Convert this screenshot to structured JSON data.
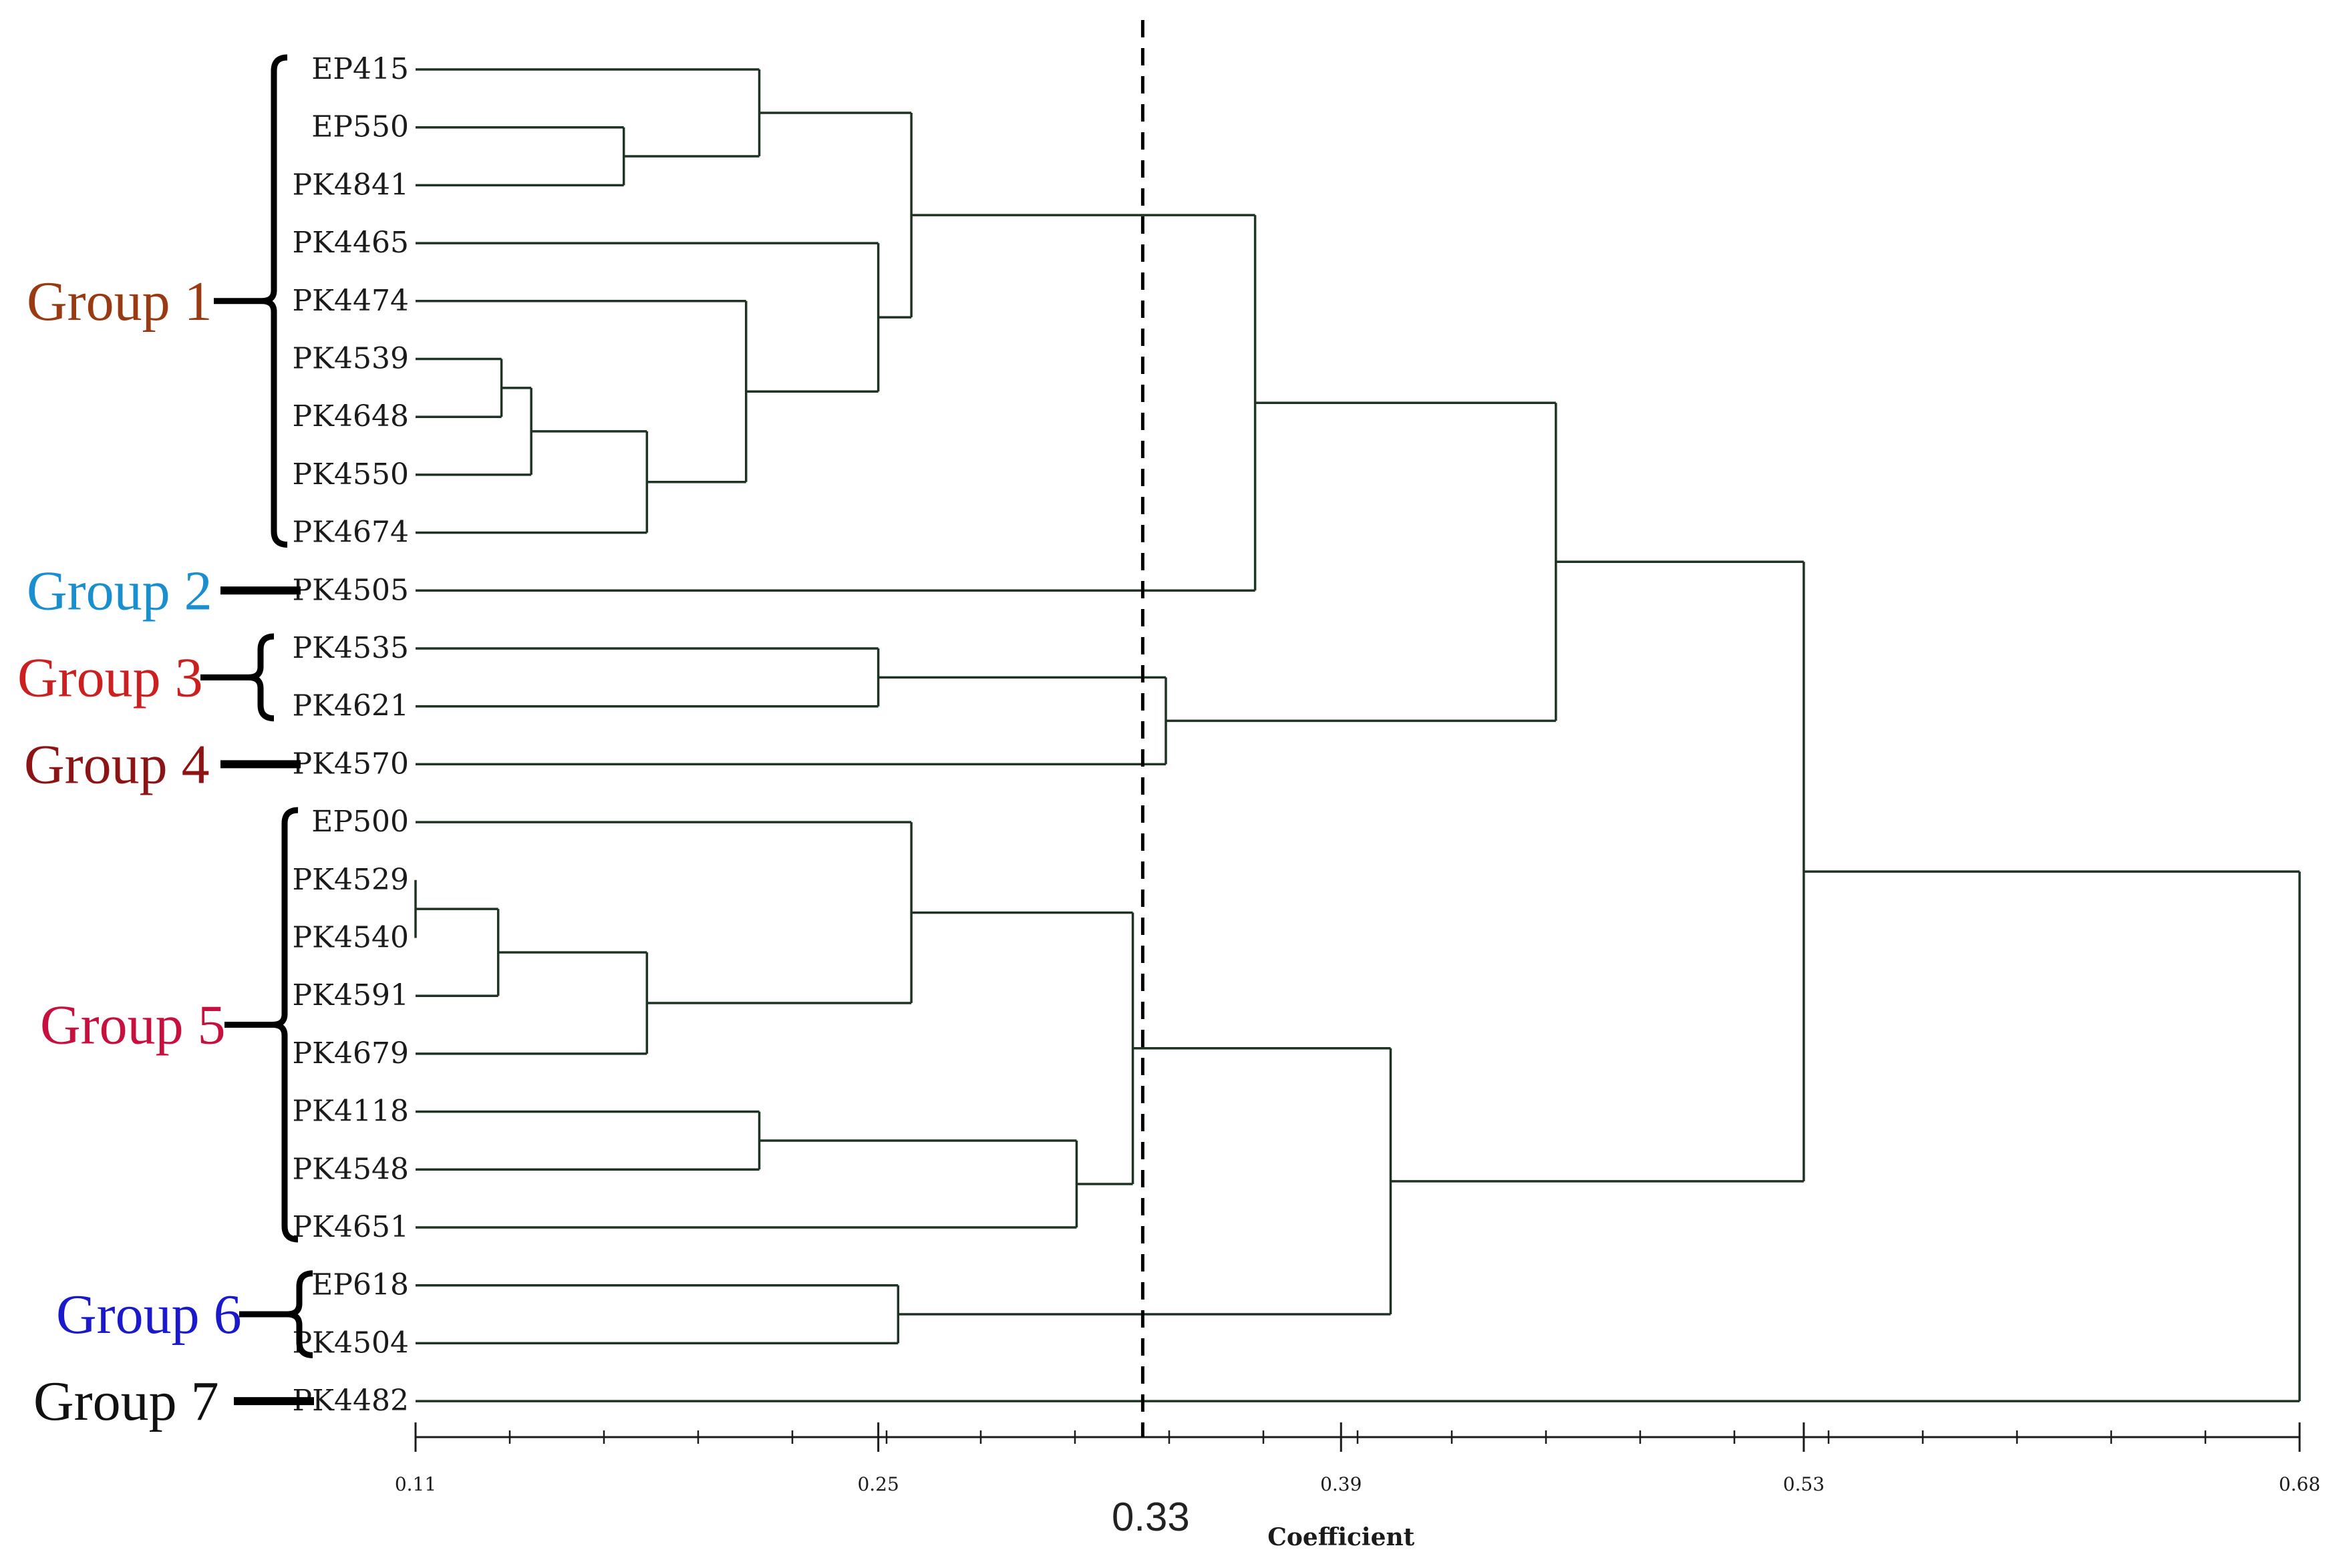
{
  "chart_data": {
    "type": "dendrogram",
    "axis": {
      "xlabel": "Coefficient",
      "min": 0.11,
      "max": 0.68,
      "tick_labels": [
        "0.11",
        "0.25",
        "0.39",
        "0.53",
        "0.68"
      ],
      "tick_values": [
        0.11,
        0.25,
        0.39,
        0.53,
        0.68
      ]
    },
    "cutoff": {
      "value": 0.33,
      "label": "0.33"
    },
    "leaves": [
      "EP415",
      "EP550",
      "PK4841",
      "PK4465",
      "PK4474",
      "PK4539",
      "PK4648",
      "PK4550",
      "PK4674",
      "PK4505",
      "PK4535",
      "PK4621",
      "PK4570",
      "EP500",
      "PK4529",
      "PK4540",
      "PK4591",
      "PK4679",
      "PK4118",
      "PK4548",
      "PK4651",
      "EP618",
      "PK4504",
      "PK4482"
    ],
    "merges": [
      {
        "id": "m1",
        "children": [
          "PK4529",
          "PK4540"
        ],
        "height": 0.11
      },
      {
        "id": "m2",
        "children": [
          "m1",
          "PK4591"
        ],
        "height": 0.135
      },
      {
        "id": "m3",
        "children": [
          "PK4539",
          "PK4648"
        ],
        "height": 0.136
      },
      {
        "id": "m4",
        "children": [
          "m3",
          "PK4550"
        ],
        "height": 0.145
      },
      {
        "id": "m5",
        "children": [
          "m4",
          "PK4674"
        ],
        "height": 0.18
      },
      {
        "id": "m6",
        "children": [
          "m2",
          "PK4679"
        ],
        "height": 0.18
      },
      {
        "id": "m7",
        "children": [
          "EP550",
          "PK4841"
        ],
        "height": 0.173
      },
      {
        "id": "m8",
        "children": [
          "PK4474",
          "m5"
        ],
        "height": 0.21
      },
      {
        "id": "m9",
        "children": [
          "EP415",
          "m7"
        ],
        "height": 0.214
      },
      {
        "id": "m10",
        "children": [
          "PK4118",
          "PK4548"
        ],
        "height": 0.214
      },
      {
        "id": "m11",
        "children": [
          "PK4535",
          "PK4621"
        ],
        "height": 0.25
      },
      {
        "id": "m12",
        "children": [
          "PK4465",
          "m8"
        ],
        "height": 0.25
      },
      {
        "id": "m13",
        "children": [
          "EP618",
          "PK4504"
        ],
        "height": 0.256
      },
      {
        "id": "m14",
        "children": [
          "m9",
          "m12"
        ],
        "height": 0.26
      },
      {
        "id": "m15",
        "children": [
          "EP500",
          "m6"
        ],
        "height": 0.26
      },
      {
        "id": "m16",
        "children": [
          "m10",
          "PK4651"
        ],
        "height": 0.31
      },
      {
        "id": "m17",
        "children": [
          "m15",
          "m16"
        ],
        "height": 0.327
      },
      {
        "id": "m18",
        "children": [
          "m11",
          "PK4570"
        ],
        "height": 0.337
      },
      {
        "id": "m19",
        "children": [
          "m14",
          "PK4505"
        ],
        "height": 0.364
      },
      {
        "id": "m20",
        "children": [
          "m17",
          "m13"
        ],
        "height": 0.405
      },
      {
        "id": "m21",
        "children": [
          "m19",
          "m18"
        ],
        "height": 0.455
      },
      {
        "id": "m22",
        "children": [
          "m21",
          "m20"
        ],
        "height": 0.53
      },
      {
        "id": "m23",
        "children": [
          "m22",
          "PK4482"
        ],
        "height": 0.68
      }
    ],
    "groups": [
      {
        "label": "Group 1",
        "color": "#9a3a12",
        "members": [
          "EP415",
          "PK4674"
        ]
      },
      {
        "label": "Group 2",
        "color": "#1a8fcf",
        "members": [
          "PK4505"
        ]
      },
      {
        "label": "Group 3",
        "color": "#cc1f1f",
        "members": [
          "PK4535",
          "PK4621"
        ]
      },
      {
        "label": "Group 4",
        "color": "#8c1414",
        "members": [
          "PK4570"
        ]
      },
      {
        "label": "Group 5",
        "color": "#c8103e",
        "members": [
          "EP500",
          "PK4651"
        ]
      },
      {
        "label": "Group 6",
        "color": "#1a1acc",
        "members": [
          "EP618",
          "PK4504"
        ]
      },
      {
        "label": "Group 7",
        "color": "#111111",
        "members": [
          "PK4482"
        ]
      }
    ],
    "colors": {
      "branch": "#1f3324",
      "bracket": "#000000",
      "cutoff": "#000000"
    }
  }
}
